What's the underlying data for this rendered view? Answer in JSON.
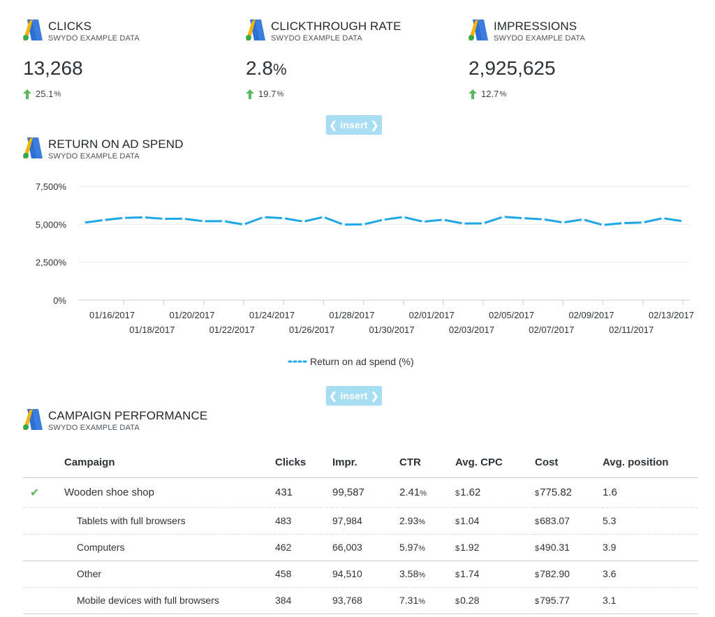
{
  "kpis": [
    {
      "title": "CLICKS",
      "subtitle": "SWYDO EXAMPLE DATA",
      "value": "13,268",
      "unit": "",
      "delta": "25.1",
      "delta_unit": "%"
    },
    {
      "title": "CLICKTHROUGH RATE",
      "subtitle": "SWYDO EXAMPLE DATA",
      "value": "2.8",
      "unit": "%",
      "delta": "19.7",
      "delta_unit": "%"
    },
    {
      "title": "IMPRESSIONS",
      "subtitle": "SWYDO EXAMPLE DATA",
      "value": "2,925,625",
      "unit": "",
      "delta": "12.7",
      "delta_unit": "%"
    }
  ],
  "insert_label": "insert",
  "roas": {
    "title": "RETURN ON AD SPEND",
    "subtitle": "SWYDO EXAMPLE DATA"
  },
  "chart_data": {
    "type": "line",
    "ylim": [
      0,
      7500
    ],
    "yticks": [
      "0%",
      "2,500%",
      "5,000%",
      "7,500%"
    ],
    "ytick_values": [
      0,
      2500,
      5000,
      7500
    ],
    "x": [
      "01/15/2017",
      "01/16/2017",
      "01/17/2017",
      "01/18/2017",
      "01/19/2017",
      "01/20/2017",
      "01/21/2017",
      "01/22/2017",
      "01/23/2017",
      "01/24/2017",
      "01/25/2017",
      "01/26/2017",
      "01/27/2017",
      "01/28/2017",
      "01/29/2017",
      "01/30/2017",
      "01/31/2017",
      "02/01/2017",
      "02/02/2017",
      "02/03/2017",
      "02/04/2017",
      "02/05/2017",
      "02/06/2017",
      "02/07/2017",
      "02/08/2017",
      "02/09/2017",
      "02/10/2017",
      "02/11/2017",
      "02/12/2017",
      "02/13/2017",
      "02/14/2017"
    ],
    "xtick_labels_top": [
      "01/16/2017",
      "01/20/2017",
      "01/24/2017",
      "01/28/2017",
      "02/01/2017",
      "02/05/2017",
      "02/09/2017",
      "02/13/2017"
    ],
    "xtick_labels_bottom": [
      "01/18/2017",
      "01/22/2017",
      "01/26/2017",
      "01/30/2017",
      "02/03/2017",
      "02/07/2017",
      "02/11/2017"
    ],
    "series": [
      {
        "name": "Return on ad spend (%)",
        "color": "#1ea7e8",
        "values": [
          5100,
          5280,
          5420,
          5460,
          5360,
          5370,
          5200,
          5210,
          4980,
          5470,
          5400,
          5180,
          5480,
          4980,
          4990,
          5300,
          5480,
          5170,
          5300,
          5050,
          5060,
          5490,
          5400,
          5330,
          5120,
          5320,
          4950,
          5080,
          5120,
          5400,
          5200
        ]
      }
    ],
    "legend": "bottom-center",
    "grid": true
  },
  "campaign": {
    "title": "CAMPAIGN PERFORMANCE",
    "subtitle": "SWYDO EXAMPLE DATA"
  },
  "table": {
    "headers": [
      "Campaign",
      "Clicks",
      "Impr.",
      "CTR",
      "Avg. CPC",
      "Cost",
      "Avg. position"
    ],
    "main": {
      "name": "Wooden shoe shop",
      "clicks": "431",
      "impr": "99,587",
      "ctr": "2.41",
      "cpc": "1.62",
      "cost": "775.82",
      "pos": "1.6"
    },
    "rows": [
      {
        "name": "Tablets with full browsers",
        "clicks": "483",
        "impr": "97,984",
        "ctr": "2.93",
        "cpc": "1.04",
        "cost": "683.07",
        "pos": "5.3"
      },
      {
        "name": "Computers",
        "clicks": "462",
        "impr": "66,003",
        "ctr": "5.97",
        "cpc": "1.92",
        "cost": "490.31",
        "pos": "3.9"
      },
      {
        "name": "Other",
        "clicks": "458",
        "impr": "94,510",
        "ctr": "3.58",
        "cpc": "1.74",
        "cost": "782.90",
        "pos": "3.6"
      },
      {
        "name": "Mobile devices with full browsers",
        "clicks": "384",
        "impr": "93,768",
        "ctr": "7.31",
        "cpc": "0.28",
        "cost": "795.77",
        "pos": "3.1"
      }
    ],
    "pct_symbol": "%",
    "currency": "$"
  }
}
